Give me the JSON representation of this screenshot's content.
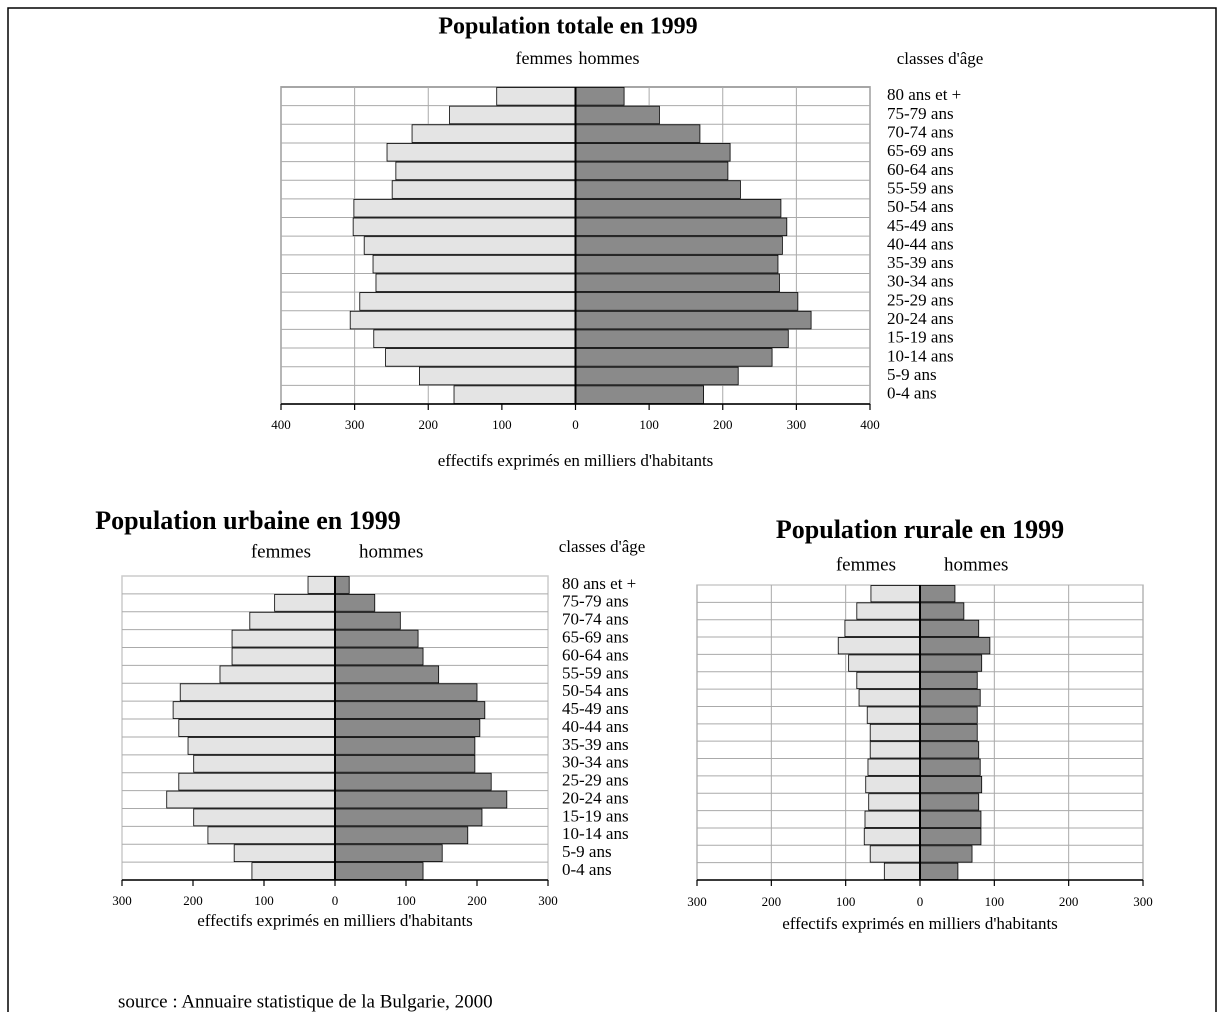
{
  "chart_data": [
    {
      "type": "pyramid",
      "title": "Population totale en 1999",
      "y_label": "classes d'âge",
      "x_label": "effectifs exprimés en milliers d'habitants",
      "categories": [
        "80 ans et +",
        "75-79 ans",
        "70-74 ans",
        "65-69 ans",
        "60-64 ans",
        "55-59 ans",
        "50-54 ans",
        "45-49 ans",
        "40-44 ans",
        "35-39 ans",
        "30-34 ans",
        "25-29 ans",
        "20-24 ans",
        "15-19 ans",
        "10-14 ans",
        "5-9 ans",
        "0-4 ans"
      ],
      "series": [
        {
          "name": "femmes",
          "color": "#e4e4e4",
          "values": [
            -107,
            -171,
            -222,
            -256,
            -244,
            -249,
            -301,
            -302,
            -287,
            -275,
            -271,
            -293,
            -306,
            -274,
            -258,
            -212,
            -165
          ]
        },
        {
          "name": "hommes",
          "color": "#8a8a8a",
          "values": [
            66,
            114,
            169,
            210,
            207,
            224,
            279,
            287,
            281,
            275,
            277,
            302,
            320,
            289,
            267,
            221,
            174
          ]
        }
      ],
      "xlim": [
        -400,
        400
      ],
      "xticks": [
        {
          "value": -400,
          "label": "400"
        },
        {
          "value": -300,
          "label": "300"
        },
        {
          "value": -200,
          "label": "200"
        },
        {
          "value": -100,
          "label": "100"
        },
        0,
        100,
        200,
        300,
        400
      ],
      "grid": true
    },
    {
      "type": "pyramid",
      "title": "Population urbaine en 1999",
      "y_label": "classes d'âge",
      "x_label": "effectifs exprimés en milliers d'habitants",
      "categories": [
        "80 ans et +",
        "75-79 ans",
        "70-74 ans",
        "65-69 ans",
        "60-64 ans",
        "55-59 ans",
        "50-54 ans",
        "45-49 ans",
        "40-44 ans",
        "35-39 ans",
        "30-34 ans",
        "25-29 ans",
        "20-24 ans",
        "15-19 ans",
        "10-14 ans",
        "5-9 ans",
        "0-4 ans"
      ],
      "series": [
        {
          "name": "femmes",
          "color": "#e4e4e4",
          "values": [
            -38,
            -85,
            -120,
            -145,
            -145,
            -162,
            -218,
            -228,
            -220,
            -207,
            -199,
            -220,
            -237,
            -199,
            -179,
            -142,
            -117
          ]
        },
        {
          "name": "hommes",
          "color": "#8a8a8a",
          "values": [
            20,
            56,
            92,
            117,
            124,
            146,
            200,
            211,
            204,
            197,
            197,
            220,
            242,
            207,
            187,
            151,
            124
          ]
        }
      ],
      "xlim": [
        -300,
        300
      ],
      "xticks": [
        {
          "value": -300,
          "label": "300"
        },
        {
          "value": -200,
          "label": "200"
        },
        {
          "value": -100,
          "label": "100"
        },
        0,
        100,
        200,
        300
      ],
      "grid": false
    },
    {
      "type": "pyramid",
      "title": "Population rurale en 1999",
      "x_label": "effectifs exprimés en milliers d'habitants",
      "series": [
        {
          "name": "femmes",
          "color": "#e4e4e4",
          "values": [
            -66,
            -85,
            -101,
            -110,
            -96,
            -85,
            -82,
            -71,
            -67,
            -67,
            -70,
            -73,
            -69,
            -74,
            -75,
            -67,
            -48
          ]
        },
        {
          "name": "hommes",
          "color": "#8a8a8a",
          "values": [
            47,
            59,
            79,
            94,
            83,
            77,
            81,
            77,
            77,
            79,
            81,
            83,
            79,
            82,
            82,
            70,
            51
          ]
        }
      ],
      "xlim": [
        -300,
        300
      ],
      "xticks": [
        {
          "value": -300,
          "label": "300"
        },
        {
          "value": -200,
          "label": "200"
        },
        {
          "value": -100,
          "label": "100"
        },
        0,
        100,
        200,
        300
      ],
      "grid": true
    }
  ],
  "source": "source : Annuaire statistique de la Bulgarie, 2000"
}
